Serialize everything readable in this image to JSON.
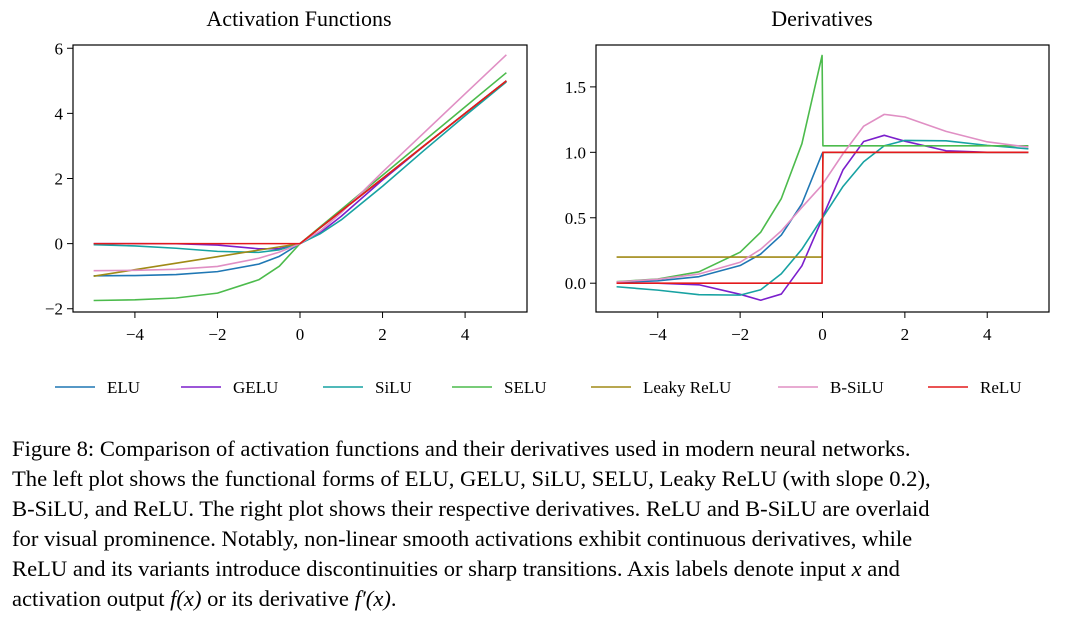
{
  "figure": {
    "left_title": "Activation Functions",
    "right_title": "Derivatives"
  },
  "chart_data": [
    {
      "type": "line",
      "title": "Activation Functions",
      "xlabel": "",
      "ylabel": "",
      "xlim": [
        -5.5,
        5.5
      ],
      "ylim": [
        -2.1,
        6.1
      ],
      "xticks": [
        -4,
        -2,
        0,
        2,
        4
      ],
      "yticks": [
        -2,
        0,
        2,
        4,
        6
      ],
      "x": [
        -5,
        -4,
        -3,
        -2,
        -1,
        -0.5,
        0,
        0.5,
        1,
        2,
        3,
        4,
        5
      ],
      "series": [
        {
          "name": "ELU",
          "color": "#1f77b4",
          "values": [
            -0.99,
            -0.98,
            -0.95,
            -0.86,
            -0.63,
            -0.39,
            0,
            0.5,
            1,
            2,
            3,
            4,
            5
          ]
        },
        {
          "name": "GELU",
          "color": "#7b1fcc",
          "values": [
            0,
            0,
            -0.004,
            -0.045,
            -0.159,
            -0.154,
            0,
            0.346,
            0.841,
            1.955,
            2.996,
            4,
            5
          ]
        },
        {
          "name": "SiLU",
          "color": "#17a2a2",
          "values": [
            -0.033,
            -0.072,
            -0.142,
            -0.238,
            -0.269,
            -0.189,
            0,
            0.311,
            0.731,
            1.762,
            2.858,
            3.928,
            4.967
          ]
        },
        {
          "name": "SELU",
          "color": "#4cbb4c",
          "values": [
            -1.747,
            -1.726,
            -1.67,
            -1.52,
            -1.111,
            -0.692,
            0,
            0.525,
            1.05,
            2.1,
            3.15,
            4.2,
            5.25
          ]
        },
        {
          "name": "Leaky ReLU",
          "color": "#a08a16",
          "values": [
            -1,
            -0.8,
            -0.6,
            -0.4,
            -0.2,
            -0.1,
            0,
            0.5,
            1,
            2,
            3,
            4,
            5
          ]
        },
        {
          "name": "B-SiLU",
          "color": "#e08fc4",
          "values": [
            -0.83,
            -0.82,
            -0.79,
            -0.7,
            -0.45,
            -0.26,
            0,
            0.4,
            0.95,
            2.2,
            3.4,
            4.6,
            5.8
          ]
        },
        {
          "name": "ReLU",
          "color": "#e31a1c",
          "values": [
            0,
            0,
            0,
            0,
            0,
            0,
            0,
            0.5,
            1,
            2,
            3,
            4,
            5
          ]
        }
      ]
    },
    {
      "type": "line",
      "title": "Derivatives",
      "xlabel": "",
      "ylabel": "",
      "xlim": [
        -5.5,
        5.5
      ],
      "ylim": [
        -0.22,
        1.82
      ],
      "xticks": [
        -4,
        -2,
        0,
        2,
        4
      ],
      "yticks": [
        0.0,
        0.5,
        1.0,
        1.5
      ],
      "x": [
        -5,
        -4,
        -3,
        -2,
        -1.5,
        -1,
        -0.5,
        -0.01,
        0.01,
        0.5,
        1,
        1.5,
        2,
        3,
        4,
        5
      ],
      "series": [
        {
          "name": "ELU",
          "color": "#1f77b4",
          "values": [
            0.007,
            0.018,
            0.05,
            0.135,
            0.223,
            0.368,
            0.607,
            0.99,
            1,
            1,
            1,
            1,
            1,
            1,
            1,
            1
          ]
        },
        {
          "name": "GELU",
          "color": "#7b1fcc",
          "values": [
            0,
            0,
            -0.012,
            -0.085,
            -0.13,
            -0.083,
            0.133,
            0.49,
            0.51,
            0.867,
            1.083,
            1.13,
            1.085,
            1.012,
            1,
            1
          ]
        },
        {
          "name": "SiLU",
          "color": "#17a2a2",
          "values": [
            -0.027,
            -0.053,
            -0.088,
            -0.091,
            -0.05,
            0.072,
            0.26,
            0.497,
            0.503,
            0.74,
            0.928,
            1.05,
            1.091,
            1.088,
            1.053,
            1.027
          ]
        },
        {
          "name": "SELU",
          "color": "#4cbb4c",
          "values": [
            0.012,
            0.032,
            0.087,
            0.237,
            0.39,
            0.647,
            1.066,
            1.74,
            1.05,
            1.05,
            1.05,
            1.05,
            1.05,
            1.05,
            1.05,
            1.05
          ]
        },
        {
          "name": "Leaky ReLU",
          "color": "#a08a16",
          "values": [
            0.2,
            0.2,
            0.2,
            0.2,
            0.2,
            0.2,
            0.2,
            0.2,
            1,
            1,
            1,
            1,
            1,
            1,
            1,
            1
          ]
        },
        {
          "name": "B-SiLU",
          "color": "#e08fc4",
          "values": [
            0.01,
            0.03,
            0.07,
            0.16,
            0.26,
            0.4,
            0.58,
            0.75,
            0.76,
            0.99,
            1.2,
            1.29,
            1.27,
            1.16,
            1.08,
            1.04
          ]
        },
        {
          "name": "ReLU",
          "color": "#e31a1c",
          "values": [
            0,
            0,
            0,
            0,
            0,
            0,
            0,
            0,
            1,
            1,
            1,
            1,
            1,
            1,
            1,
            1
          ]
        }
      ]
    }
  ],
  "legend": [
    {
      "label": "ELU",
      "color": "#1f77b4"
    },
    {
      "label": "GELU",
      "color": "#7b1fcc"
    },
    {
      "label": "SiLU",
      "color": "#17a2a2"
    },
    {
      "label": "SELU",
      "color": "#4cbb4c"
    },
    {
      "label": "Leaky ReLU",
      "color": "#a08a16"
    },
    {
      "label": "B-SiLU",
      "color": "#e08fc4"
    },
    {
      "label": "ReLU",
      "color": "#e31a1c"
    }
  ],
  "caption": {
    "line1": "Figure 8: Comparison of activation functions and their derivatives used in modern neural networks.",
    "line2": "The left plot shows the functional forms of ELU, GELU, SiLU, SELU, Leaky ReLU (with slope 0.2),",
    "line3": "B-SiLU, and ReLU. The right plot shows their respective derivatives. ReLU and B-SiLU are overlaid",
    "line4": "for visual prominence. Notably, non-linear smooth activations exhibit continuous derivatives, while",
    "line5_pre": "ReLU and its variants introduce discontinuities or sharp transitions. Axis labels denote input ",
    "line5_var": "x",
    "line5_post": " and",
    "line6_pre": "activation output ",
    "line6_fx": "f(x)",
    "line6_mid": " or its derivative ",
    "line6_dfx": "f′(x)",
    "line6_post": "."
  }
}
